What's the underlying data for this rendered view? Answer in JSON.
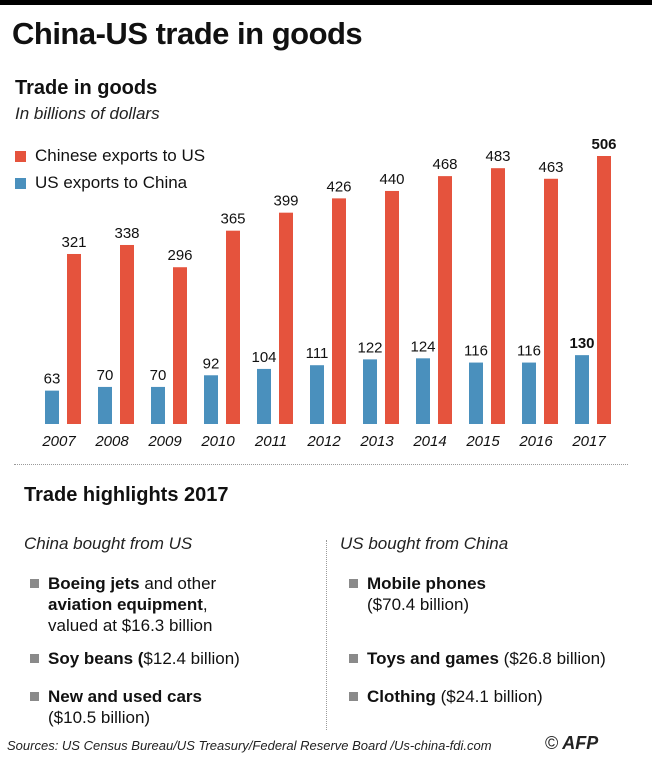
{
  "title": "China-US trade in goods",
  "chart_data": {
    "type": "bar",
    "title": "Trade in goods",
    "subtitle": "In billions of dollars",
    "categories": [
      "2007",
      "2008",
      "2009",
      "2010",
      "2011",
      "2012",
      "2013",
      "2014",
      "2015",
      "2016",
      "2017"
    ],
    "series": [
      {
        "name": "US exports to China",
        "color": "#4a90bd",
        "values": [
          63,
          70,
          70,
          92,
          104,
          111,
          122,
          124,
          116,
          116,
          130
        ]
      },
      {
        "name": "Chinese exports to US",
        "color": "#e5533d",
        "values": [
          321,
          338,
          296,
          365,
          399,
          426,
          440,
          468,
          483,
          463,
          506
        ]
      }
    ],
    "legend": [
      "Chinese exports to US",
      "US exports to China"
    ],
    "ylim": [
      0,
      520
    ]
  },
  "highlights": {
    "title": "Trade highlights 2017",
    "left_heading": "China bought from US",
    "right_heading": "US bought from China",
    "left_items": [
      {
        "b1": "Boeing jets",
        "t1": " and other",
        "b2": "aviation equipment",
        "t2": ",",
        "t3": "valued at $16.3 billion"
      },
      {
        "b": "Soy beans (",
        "t": "$12.4 billion)"
      },
      {
        "b": "New and used cars",
        "t": "($10.5 billion)"
      }
    ],
    "right_items": [
      {
        "b": "Mobile phones",
        "t": "($70.4 billion)"
      },
      {
        "b": "Toys and games",
        "t": " ($26.8 billion)"
      },
      {
        "b": "Clothing",
        "t": " ($24.1 billion)"
      }
    ]
  },
  "footer": {
    "sources": "Sources: US Census Bureau/US Treasury/Federal Reserve Board /Us-china-fdi.com",
    "copyright": "©",
    "agency": "AFP"
  }
}
